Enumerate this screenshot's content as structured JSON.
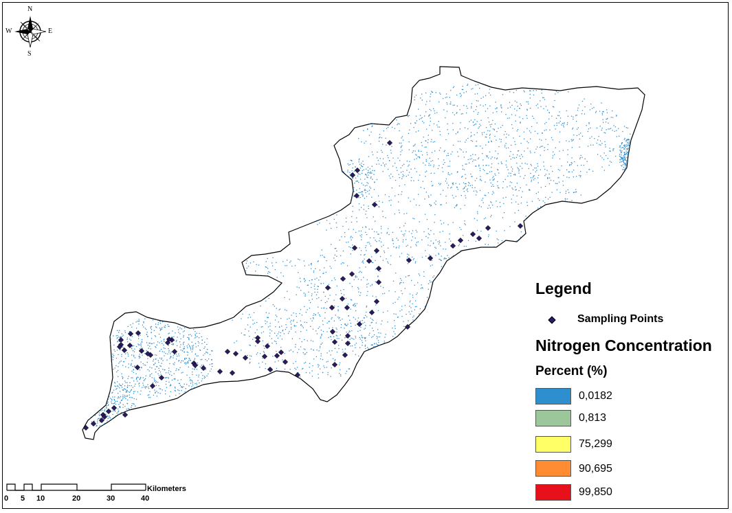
{
  "compass": {
    "north": "N",
    "south": "S",
    "east": "E",
    "west": "W"
  },
  "legend": {
    "title": "Legend",
    "sampling_label": "Sampling Points",
    "concentration_title": "Nitrogen Concentration",
    "unit_title": "Percent (%)",
    "classes": [
      {
        "label": "0,0182",
        "color": "#2e8fcf"
      },
      {
        "label": "0,813",
        "color": "#9cc79a"
      },
      {
        "label": "75,299",
        "color": "#ffff66"
      },
      {
        "label": "90,695",
        "color": "#ff8c33"
      },
      {
        "label": "99,850",
        "color": "#e8101a"
      }
    ]
  },
  "scale_bar": {
    "ticks": [
      "0",
      "5",
      "10",
      "20",
      "30",
      "40"
    ],
    "unit": "Kilometers"
  },
  "colors": {
    "boundary": "#000000",
    "sampling_point": "#2a1b66",
    "raster_low": "#2e8fcf"
  }
}
